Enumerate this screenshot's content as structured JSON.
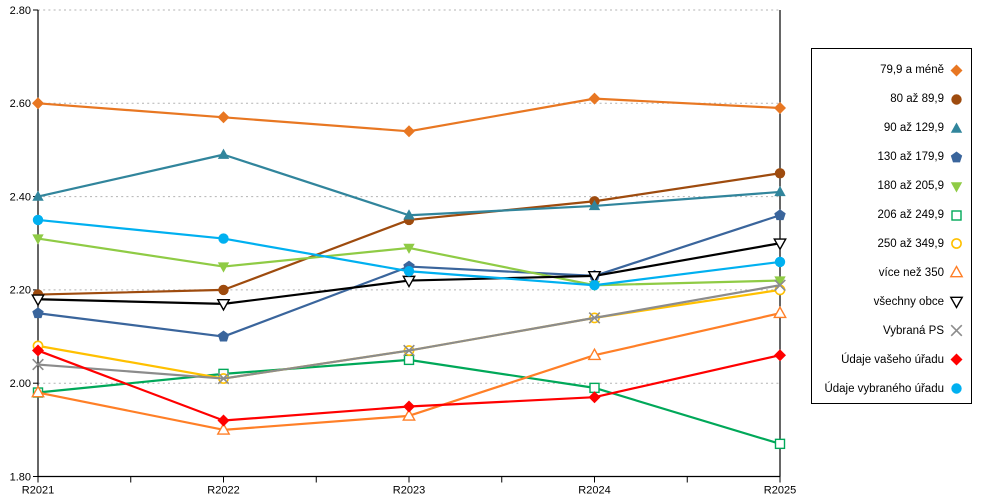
{
  "chart_data": {
    "type": "line",
    "title": "",
    "xlabel": "",
    "ylabel": "",
    "categories": [
      "R2021",
      "R2022",
      "R2023",
      "R2024",
      "R2025"
    ],
    "ylim": [
      1.8,
      2.8
    ],
    "y_ticks": [
      2.8,
      2.6,
      2.4,
      2.2,
      2.0,
      1.8
    ],
    "y_tick_labels": [
      "2.80",
      "2.60",
      "2.40",
      "2.20",
      "2.00",
      "1.80"
    ],
    "grid": "horizontal-dashed",
    "legend_position": "right",
    "series": [
      {
        "name": "79,9 a méně",
        "color": "#E87722",
        "marker": "diamond",
        "values": [
          2.6,
          2.57,
          2.54,
          2.61,
          2.59
        ]
      },
      {
        "name": "80 až 89,9",
        "color": "#9E4B0E",
        "marker": "circle",
        "values": [
          2.19,
          2.2,
          2.35,
          2.39,
          2.45
        ]
      },
      {
        "name": "90 až 129,9",
        "color": "#31859C",
        "marker": "triangle-up",
        "values": [
          2.4,
          2.49,
          2.36,
          2.38,
          2.41
        ]
      },
      {
        "name": "130 až 179,9",
        "color": "#3A659C",
        "marker": "pentagon",
        "values": [
          2.15,
          2.1,
          2.25,
          2.23,
          2.36
        ]
      },
      {
        "name": "180 až 205,9",
        "color": "#8FCB45",
        "marker": "triangle-down",
        "values": [
          2.31,
          2.25,
          2.29,
          2.21,
          2.22
        ]
      },
      {
        "name": "206 až 249,9",
        "color": "#00A859",
        "marker": "square-open",
        "values": [
          1.98,
          2.02,
          2.05,
          1.99,
          1.87
        ]
      },
      {
        "name": "250 až 349,9",
        "color": "#FFC000",
        "marker": "circle-open",
        "values": [
          2.08,
          2.01,
          2.07,
          2.14,
          2.2
        ]
      },
      {
        "name": "více než 350",
        "color": "#FF7F27",
        "marker": "triangle-up-open",
        "values": [
          1.98,
          1.9,
          1.93,
          2.06,
          2.15
        ]
      },
      {
        "name": "všechny obce",
        "color": "#000000",
        "marker": "triangle-down-open",
        "values": [
          2.18,
          2.17,
          2.22,
          2.23,
          2.3
        ]
      },
      {
        "name": "Vybraná PS",
        "color": "#8C8C8C",
        "marker": "x",
        "values": [
          2.04,
          2.01,
          2.07,
          2.14,
          2.21
        ]
      },
      {
        "name": "Údaje vašeho úřadu",
        "color": "#FF0000",
        "marker": "diamond",
        "values": [
          2.07,
          1.92,
          1.95,
          1.97,
          2.06
        ]
      },
      {
        "name": "Údaje vybraného úřadu",
        "color": "#00B0F0",
        "marker": "circle",
        "values": [
          2.35,
          2.31,
          2.24,
          2.21,
          2.26
        ]
      }
    ],
    "colors": {
      "background": "#FFFFFF",
      "grid": "#B3B3B3",
      "axis": "#000000",
      "tick_label": "#000000",
      "legend_border": "#000000"
    }
  }
}
